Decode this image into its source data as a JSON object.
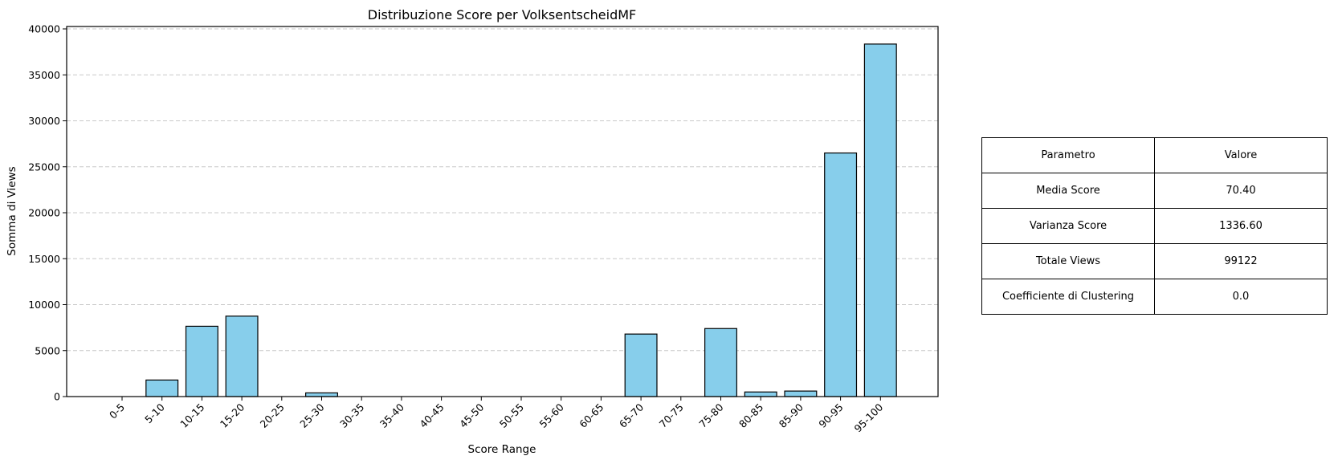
{
  "chart_data": {
    "type": "bar",
    "title": "Distribuzione Score per VolksentscheidMF",
    "xlabel": "Score Range",
    "ylabel": "Somma di Views",
    "categories": [
      "0-5",
      "5-10",
      "10-15",
      "15-20",
      "20-25",
      "25-30",
      "30-35",
      "35-40",
      "40-45",
      "45-50",
      "50-55",
      "55-60",
      "60-65",
      "65-70",
      "70-75",
      "75-80",
      "80-85",
      "85-90",
      "90-95",
      "95-100"
    ],
    "values": [
      0,
      1800,
      7650,
      8750,
      0,
      400,
      0,
      0,
      0,
      0,
      0,
      0,
      0,
      6800,
      0,
      7400,
      500,
      600,
      26500,
      38350
    ],
    "ylim": [
      0,
      40000
    ],
    "yticks": [
      0,
      5000,
      10000,
      15000,
      20000,
      25000,
      30000,
      35000,
      40000
    ],
    "grid": "y-dashed",
    "bar_color": "#87CEEB",
    "edge_color": "#000000"
  },
  "table": {
    "headers": [
      "Parametro",
      "Valore"
    ],
    "rows": [
      [
        "Media Score",
        "70.40"
      ],
      [
        "Varianza Score",
        "1336.60"
      ],
      [
        "Totale Views",
        "99122"
      ],
      [
        "Coefficiente di Clustering",
        "0.0"
      ]
    ]
  }
}
